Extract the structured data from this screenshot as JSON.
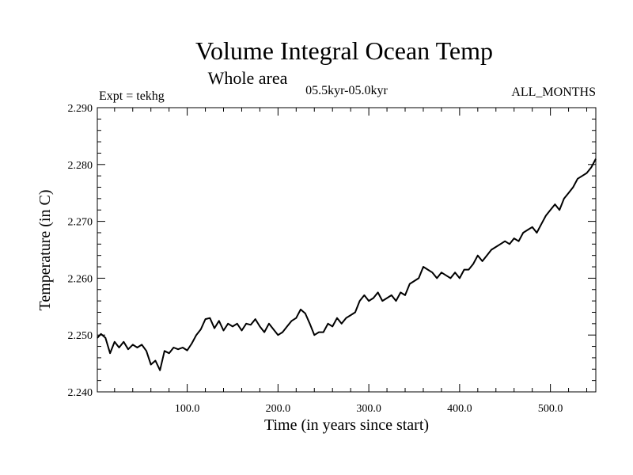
{
  "chart_data": {
    "type": "line",
    "title": "Volume Integral Ocean Temp",
    "subtitle": "Whole area",
    "period": "05.5kyr-05.0kyr",
    "experiment": "Expt = tekhg",
    "months": "ALL_MONTHS",
    "xlabel": "Time (in years since start)",
    "ylabel": "Temperature (in C)",
    "xlim": [
      1,
      550
    ],
    "ylim": [
      2.24,
      2.29
    ],
    "x_ticks": [
      100,
      200,
      300,
      400,
      500
    ],
    "x_tick_labels": [
      "100.0",
      "200.0",
      "300.0",
      "400.0",
      "500.0"
    ],
    "y_ticks": [
      2.24,
      2.25,
      2.26,
      2.27,
      2.28,
      2.29
    ],
    "y_tick_labels": [
      "2.240",
      "2.250",
      "2.260",
      "2.270",
      "2.280",
      "2.290"
    ],
    "series": [
      {
        "name": "Volume Integral Ocean Temp",
        "color": "#000000",
        "x": [
          1,
          5,
          10,
          15,
          20,
          25,
          30,
          35,
          40,
          45,
          50,
          55,
          60,
          65,
          70,
          75,
          80,
          85,
          90,
          95,
          100,
          105,
          110,
          115,
          120,
          125,
          130,
          135,
          140,
          145,
          150,
          155,
          160,
          165,
          170,
          175,
          180,
          185,
          190,
          195,
          200,
          205,
          210,
          215,
          220,
          225,
          230,
          235,
          240,
          245,
          250,
          255,
          260,
          265,
          270,
          275,
          280,
          285,
          290,
          295,
          300,
          305,
          310,
          315,
          320,
          325,
          330,
          335,
          340,
          345,
          350,
          355,
          360,
          365,
          370,
          375,
          380,
          385,
          390,
          395,
          400,
          405,
          410,
          415,
          420,
          425,
          430,
          435,
          440,
          445,
          450,
          455,
          460,
          465,
          470,
          475,
          480,
          485,
          490,
          495,
          500,
          505,
          510,
          515,
          520,
          525,
          530,
          535,
          540,
          545,
          550
        ],
        "values": [
          2.2495,
          2.2502,
          2.2495,
          2.2468,
          2.2488,
          2.2478,
          2.2488,
          2.2475,
          2.2483,
          2.2478,
          2.2483,
          2.2472,
          2.2448,
          2.2455,
          2.2438,
          2.2472,
          2.2468,
          2.2478,
          2.2475,
          2.2478,
          2.2473,
          2.2485,
          2.25,
          2.251,
          2.2528,
          2.253,
          2.2512,
          2.2525,
          2.2508,
          2.252,
          2.2515,
          2.252,
          2.2508,
          2.252,
          2.2518,
          2.2528,
          2.2515,
          2.2505,
          2.252,
          2.251,
          2.25,
          2.2505,
          2.2515,
          2.2525,
          2.253,
          2.2545,
          2.2538,
          2.252,
          2.25,
          2.2505,
          2.2505,
          2.252,
          2.2515,
          2.253,
          2.252,
          2.253,
          2.2535,
          2.254,
          2.256,
          2.257,
          2.256,
          2.2565,
          2.2575,
          2.256,
          2.2565,
          2.257,
          2.256,
          2.2575,
          2.257,
          2.259,
          2.2595,
          2.26,
          2.262,
          2.2615,
          2.261,
          2.26,
          2.261,
          2.2605,
          2.26,
          2.261,
          2.26,
          2.2615,
          2.2615,
          2.2625,
          2.264,
          2.263,
          2.264,
          2.265,
          2.2655,
          2.266,
          2.2665,
          2.266,
          2.267,
          2.2665,
          2.268,
          2.2685,
          2.269,
          2.268,
          2.2695,
          2.271,
          2.272,
          2.273,
          2.272,
          2.274,
          2.275,
          2.276,
          2.2775,
          2.278,
          2.2785,
          2.2795,
          2.281
        ]
      }
    ]
  }
}
